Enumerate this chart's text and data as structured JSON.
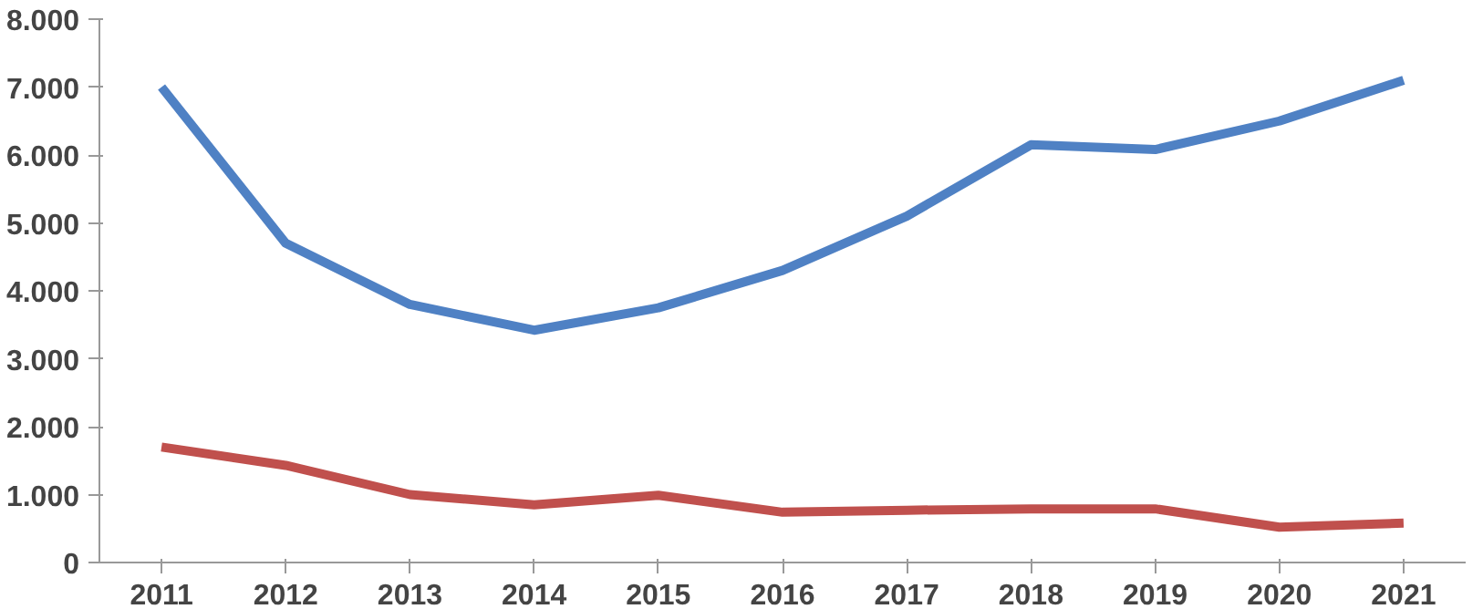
{
  "chart_data": {
    "type": "line",
    "categories": [
      "2011",
      "2012",
      "2013",
      "2014",
      "2015",
      "2016",
      "2017",
      "2018",
      "2019",
      "2020",
      "2021"
    ],
    "series": [
      {
        "color": "#4f81c4",
        "values": [
          7000,
          4700,
          3800,
          3420,
          3750,
          4300,
          5100,
          6150,
          6080,
          6500,
          7100
        ]
      },
      {
        "color": "#c0504d",
        "values": [
          1700,
          1430,
          1000,
          850,
          990,
          740,
          770,
          790,
          790,
          520,
          580
        ]
      }
    ],
    "ylim": [
      0,
      8000
    ],
    "yticks": [
      {
        "value": 0,
        "label": "0"
      },
      {
        "value": 1000,
        "label": "1.000"
      },
      {
        "value": 2000,
        "label": "2.000"
      },
      {
        "value": 3000,
        "label": "3.000"
      },
      {
        "value": 4000,
        "label": "4.000"
      },
      {
        "value": 5000,
        "label": "5.000"
      },
      {
        "value": 6000,
        "label": "6.000"
      },
      {
        "value": 7000,
        "label": "7.000"
      },
      {
        "value": 8000,
        "label": "8.000"
      }
    ],
    "grid": false,
    "marker": "none",
    "line_style": "solid"
  }
}
